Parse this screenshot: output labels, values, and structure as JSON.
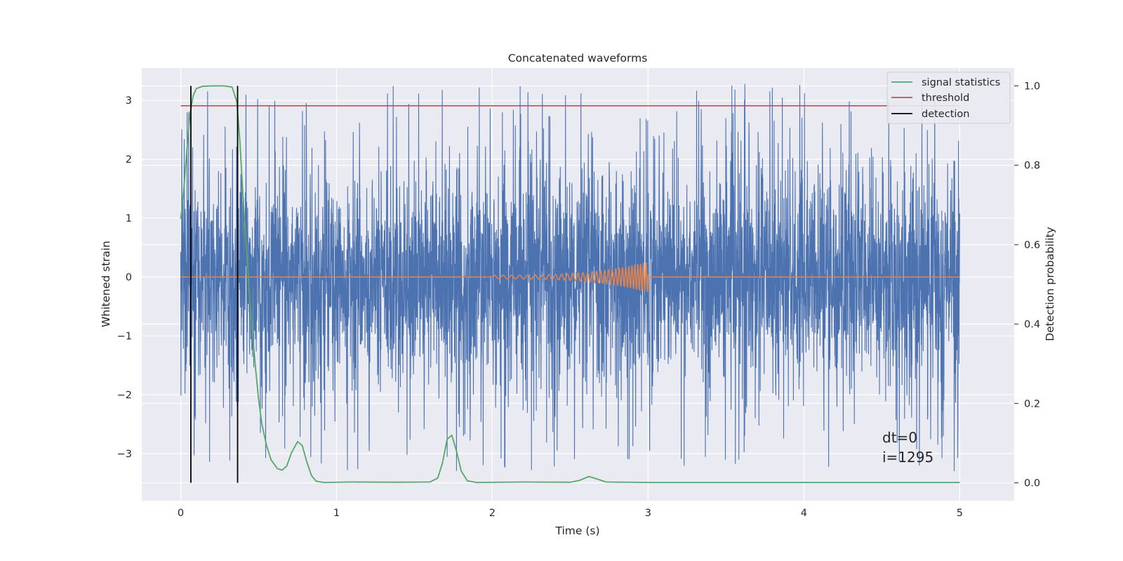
{
  "chart_data": {
    "type": "line",
    "title": "Concatenated waveforms",
    "xlabel": "Time (s)",
    "ylabel": "Whitened strain",
    "y2label": "Detection probability",
    "xlim": [
      -0.25,
      5.35
    ],
    "ylim": [
      -3.8,
      3.55
    ],
    "y2lim": [
      -0.045,
      1.045
    ],
    "xticks": [
      0,
      1,
      2,
      3,
      4,
      5
    ],
    "yticks": [
      -3,
      -2,
      -1,
      0,
      1,
      2,
      3
    ],
    "y2ticks": [
      0.0,
      0.2,
      0.4,
      0.6,
      0.8,
      1.0
    ],
    "xtick_labels": [
      "0",
      "1",
      "2",
      "3",
      "4",
      "5"
    ],
    "ytick_labels": [
      "−3",
      "−2",
      "−1",
      "0",
      "1",
      "2",
      "3"
    ],
    "y2tick_labels": [
      "0.0",
      "0.2",
      "0.4",
      "0.6",
      "0.8",
      "1.0"
    ],
    "grid": true,
    "legend_position": "top-right",
    "legend": [
      {
        "label": "signal statistics",
        "color": "#55a868"
      },
      {
        "label": "threshold",
        "color": "#c44e52"
      },
      {
        "label": "detection",
        "color": "#000000"
      }
    ],
    "series": [
      {
        "description_key": "noise",
        "axis": "left",
        "color": "#4c72b0",
        "x_range": [
          0,
          5
        ],
        "amplitude_envelope": [
          -3.45,
          3.3
        ],
        "typical_band": [
          -1.4,
          1.4
        ],
        "kind": "dense-noise"
      },
      {
        "description_key": "injected-signal",
        "axis": "left",
        "color": "#dd8452",
        "x_range": [
          0,
          5
        ],
        "chirp_x_range": [
          2.0,
          3.0
        ],
        "chirp_peak_amplitude": 0.25
      },
      {
        "name": "signal statistics",
        "axis": "right",
        "color": "#55a868",
        "points": [
          [
            0.0,
            0.665
          ],
          [
            0.02,
            0.74
          ],
          [
            0.04,
            0.84
          ],
          [
            0.06,
            0.93
          ],
          [
            0.08,
            0.975
          ],
          [
            0.1,
            0.993
          ],
          [
            0.14,
            0.999
          ],
          [
            0.2,
            1.0
          ],
          [
            0.28,
            1.0
          ],
          [
            0.33,
            0.997
          ],
          [
            0.36,
            0.96
          ],
          [
            0.38,
            0.86
          ],
          [
            0.4,
            0.72
          ],
          [
            0.42,
            0.6
          ],
          [
            0.44,
            0.48
          ],
          [
            0.46,
            0.38
          ],
          [
            0.48,
            0.29
          ],
          [
            0.5,
            0.21
          ],
          [
            0.52,
            0.15
          ],
          [
            0.55,
            0.095
          ],
          [
            0.58,
            0.058
          ],
          [
            0.62,
            0.036
          ],
          [
            0.65,
            0.032
          ],
          [
            0.68,
            0.042
          ],
          [
            0.71,
            0.075
          ],
          [
            0.75,
            0.104
          ],
          [
            0.78,
            0.094
          ],
          [
            0.81,
            0.052
          ],
          [
            0.84,
            0.018
          ],
          [
            0.87,
            0.004
          ],
          [
            0.92,
            0.001
          ],
          [
            1.1,
            0.002
          ],
          [
            1.4,
            0.0015
          ],
          [
            1.6,
            0.002
          ],
          [
            1.65,
            0.012
          ],
          [
            1.68,
            0.05
          ],
          [
            1.71,
            0.11
          ],
          [
            1.74,
            0.12
          ],
          [
            1.77,
            0.08
          ],
          [
            1.8,
            0.03
          ],
          [
            1.84,
            0.005
          ],
          [
            1.9,
            0.001
          ],
          [
            2.2,
            0.002
          ],
          [
            2.5,
            0.0015
          ],
          [
            2.56,
            0.006
          ],
          [
            2.62,
            0.016
          ],
          [
            2.67,
            0.01
          ],
          [
            2.73,
            0.002
          ],
          [
            3.0,
            0.001
          ],
          [
            4.0,
            0.001
          ],
          [
            5.0,
            0.001
          ]
        ]
      },
      {
        "name": "threshold",
        "axis": "right",
        "color": "#c44e52",
        "x": [
          0,
          5
        ],
        "y": [
          0.95,
          0.95
        ]
      },
      {
        "name": "detection",
        "axis": "right",
        "color": "#000000",
        "x": [
          0.065,
          0.365
        ],
        "y_range": [
          0.0,
          1.0
        ]
      }
    ],
    "annotations": [
      "dt=0",
      "i=1295"
    ]
  }
}
